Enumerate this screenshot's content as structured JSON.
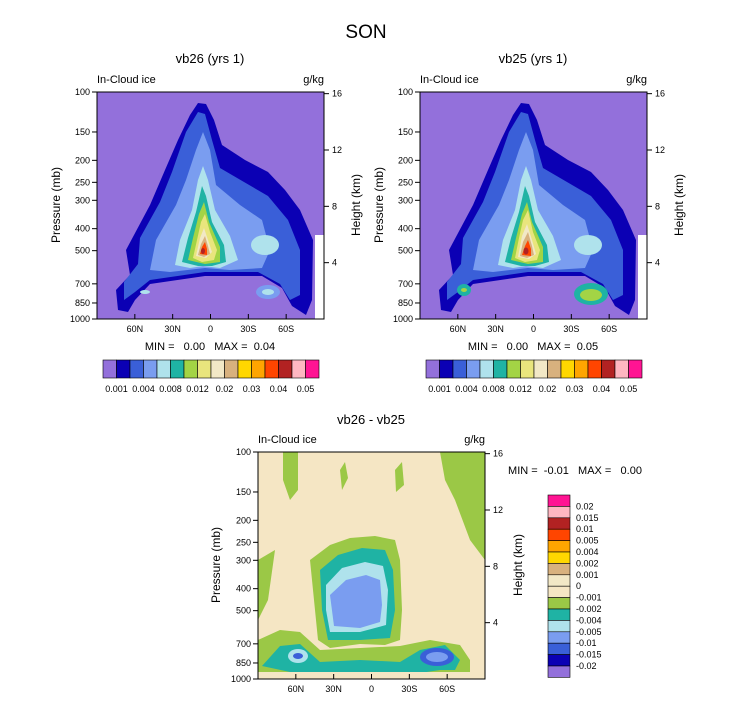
{
  "figure_title": "SON",
  "chart_data": [
    {
      "type": "heatmap",
      "title": "vb26 (yrs 1)",
      "left_label": "In-Cloud ice",
      "units": "g/kg",
      "ylabel": "Pressure (mb)",
      "y2label": "Height (km)",
      "y_ticks": [
        "100",
        "150",
        "200",
        "250",
        "300",
        "400",
        "500",
        "700",
        "850",
        "1000"
      ],
      "y2_ticks": [
        "16",
        "12",
        "8",
        "4"
      ],
      "x_ticks": [
        "60N",
        "30N",
        "0",
        "30S",
        "60S"
      ],
      "stats": "MIN =   0.00   MAX =  0.04",
      "colorbar_labels": [
        "0.001",
        "0.004",
        "0.008",
        "0.012",
        "0.02",
        "0.03",
        "0.04",
        "0.05"
      ],
      "colors": [
        "#9370db",
        "#0b00b4",
        "#3a5fd8",
        "#7a9df0",
        "#afe2ec",
        "#1fb3a4",
        "#a3d445",
        "#e9e57d",
        "#f2e8c6",
        "#d8b17e",
        "#ffd700",
        "#ffa500",
        "#ff4500",
        "#b22222",
        "#ffb6c1",
        "#ff1493"
      ]
    },
    {
      "type": "heatmap",
      "title": "vb25 (yrs 1)",
      "left_label": "In-Cloud ice",
      "units": "g/kg",
      "ylabel": "Pressure (mb)",
      "y2label": "Height (km)",
      "y_ticks": [
        "100",
        "150",
        "200",
        "250",
        "300",
        "400",
        "500",
        "700",
        "850",
        "1000"
      ],
      "y2_ticks": [
        "16",
        "12",
        "8",
        "4"
      ],
      "x_ticks": [
        "60N",
        "30N",
        "0",
        "30S",
        "60S"
      ],
      "stats": "MIN =   0.00   MAX =  0.05",
      "colorbar_labels": [
        "0.001",
        "0.004",
        "0.008",
        "0.012",
        "0.02",
        "0.03",
        "0.04",
        "0.05"
      ],
      "colors": [
        "#9370db",
        "#0b00b4",
        "#3a5fd8",
        "#7a9df0",
        "#afe2ec",
        "#1fb3a4",
        "#a3d445",
        "#e9e57d",
        "#f2e8c6",
        "#d8b17e",
        "#ffd700",
        "#ffa500",
        "#ff4500",
        "#b22222",
        "#ffb6c1",
        "#ff1493"
      ]
    },
    {
      "type": "heatmap",
      "title": "vb26 - vb25",
      "left_label": "In-Cloud ice",
      "units": "g/kg",
      "ylabel": "Pressure (mb)",
      "y2label": "Height (km)",
      "y_ticks": [
        "100",
        "150",
        "200",
        "250",
        "300",
        "400",
        "500",
        "700",
        "850",
        "1000"
      ],
      "y2_ticks": [
        "16",
        "12",
        "8",
        "4"
      ],
      "x_ticks": [
        "60N",
        "30N",
        "0",
        "30S",
        "60S"
      ],
      "stats": "MIN =  -0.01   MAX =   0.00",
      "colorbar_labels": [
        "0.02",
        "0.015",
        "0.01",
        "0.005",
        "0.004",
        "0.002",
        "0.001",
        "0",
        "-0.001",
        "-0.002",
        "-0.004",
        "-0.005",
        "-0.01",
        "-0.015",
        "-0.02"
      ],
      "colors": [
        "#ff1493",
        "#ffb6c1",
        "#b22222",
        "#ff4500",
        "#ffa500",
        "#ffd700",
        "#d8b17e",
        "#f2e8c6",
        "#f5e6c4",
        "#9bc846",
        "#1fb3a4",
        "#afe2ec",
        "#7a9df0",
        "#3a5fd8",
        "#0b00b4",
        "#9370db"
      ]
    }
  ]
}
